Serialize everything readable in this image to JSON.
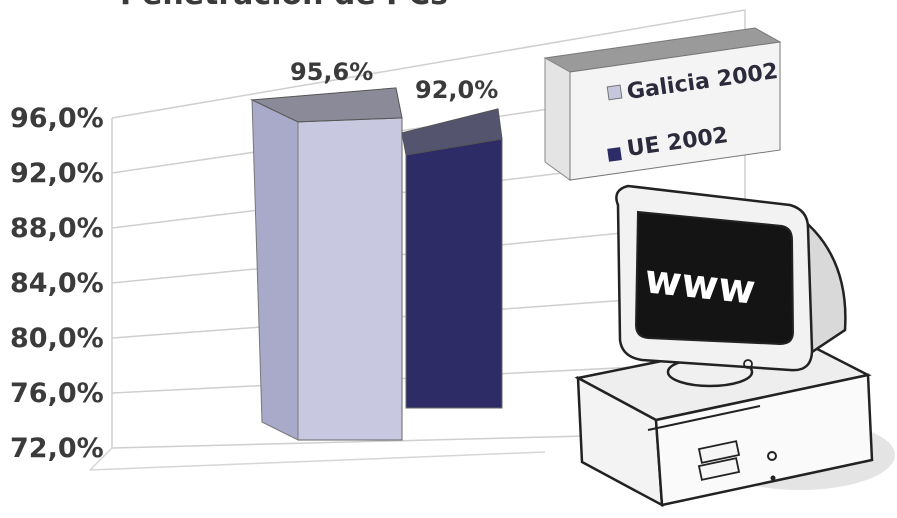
{
  "title_fragment": "Penetración de PCs",
  "chart_data": {
    "type": "bar",
    "categories": [
      "Galicia 2002",
      "UE 2002"
    ],
    "values": [
      95.6,
      92.0
    ],
    "data_labels": [
      "95,6%",
      "92,0%"
    ],
    "ylim": [
      72,
      96
    ],
    "yticks": [
      "72,0%",
      "76,0%",
      "80,0%",
      "84,0%",
      "88,0%",
      "92,0%",
      "96,0%"
    ],
    "ytick_values": [
      72,
      76,
      80,
      84,
      88,
      92,
      96
    ],
    "grid": true,
    "legend_position": "top-right",
    "legend": [
      {
        "name": "Galicia 2002",
        "color": "#c6c6df"
      },
      {
        "name": "UE 2002",
        "color": "#2e2c66"
      }
    ],
    "colors": {
      "galicia_front": "#c8c8e0",
      "galicia_side": "#a9a9c9",
      "galicia_top": "#8a8a98",
      "ue_front": "#2e2c66",
      "ue_side": "#222050",
      "ue_top": "#55546e"
    }
  },
  "illustration": {
    "screen_text": "www"
  }
}
